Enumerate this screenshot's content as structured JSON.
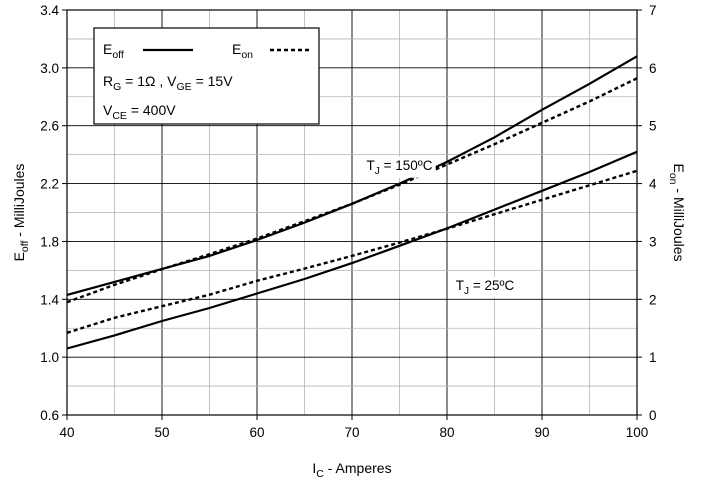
{
  "chart_data": {
    "type": "line",
    "x_axis": {
      "label_main": "I",
      "label_sub": "C",
      "label_rest": " - Amperes",
      "lim": [
        40,
        100
      ],
      "ticks": [
        40,
        50,
        60,
        70,
        80,
        90,
        100
      ],
      "minor_step": 5
    },
    "y_left": {
      "label_main": "E",
      "label_sub": "off",
      "label_rest": " - MilliJoules",
      "lim": [
        0.6,
        3.4
      ],
      "ticks": [
        0.6,
        1.0,
        1.4,
        1.8,
        2.2,
        2.6,
        3.0,
        3.4
      ],
      "tick_labels": [
        "0.6",
        "1.0",
        "1.4",
        "1.8",
        "2.2",
        "2.6",
        "3.0",
        "3.4"
      ],
      "minor_step": 0.2
    },
    "y_right": {
      "label_main": "E",
      "label_sub": "on",
      "label_rest": " - MilliJoules",
      "lim": [
        0,
        7
      ],
      "ticks": [
        0,
        1,
        2,
        3,
        4,
        5,
        6,
        7
      ],
      "tick_labels": [
        "0",
        "1",
        "2",
        "3",
        "4",
        "5",
        "6",
        "7"
      ]
    },
    "grid": true,
    "legend": {
      "placement": "top-left",
      "entries": [
        {
          "main": "E",
          "sub": "off",
          "style": "solid"
        },
        {
          "main": "E",
          "sub": "on",
          "style": "dashed"
        }
      ],
      "conditions": [
        [
          {
            "t": "R"
          },
          {
            "t": "G",
            "sub": true
          },
          {
            "t": " = 1Ω ,  V"
          },
          {
            "t": "GE",
            "sub": true
          },
          {
            "t": " = 15V"
          }
        ],
        [
          {
            "t": "V"
          },
          {
            "t": "CE",
            "sub": true
          },
          {
            "t": " = 400V"
          }
        ]
      ]
    },
    "annotations": [
      {
        "main": "T",
        "sub": "J",
        "rest": " = 150ºC",
        "x": 75,
        "y": 2.33
      },
      {
        "main": "T",
        "sub": "J",
        "rest": " = 25ºC",
        "x": 84,
        "y": 1.5
      }
    ],
    "series": [
      {
        "group": "150ºC",
        "quantity": "Eoff",
        "axis": "left",
        "style": "solid",
        "x": [
          40,
          45,
          50,
          55,
          60,
          65,
          70,
          75,
          80,
          85,
          90,
          95,
          100
        ],
        "y": [
          1.43,
          1.52,
          1.61,
          1.7,
          1.81,
          1.93,
          2.06,
          2.2,
          2.35,
          2.52,
          2.71,
          2.89,
          3.08
        ]
      },
      {
        "group": "150ºC",
        "quantity": "Eon",
        "axis": "right",
        "style": "dashed",
        "x": [
          40,
          45,
          50,
          55,
          60,
          65,
          70,
          75,
          80,
          85,
          90,
          95,
          100
        ],
        "y": [
          1.95,
          2.25,
          2.52,
          2.78,
          3.05,
          3.35,
          3.65,
          3.98,
          4.33,
          4.68,
          5.05,
          5.42,
          5.82
        ]
      },
      {
        "group": "25ºC",
        "quantity": "Eoff",
        "axis": "left",
        "style": "solid",
        "x": [
          40,
          45,
          50,
          55,
          60,
          65,
          70,
          75,
          80,
          85,
          90,
          95,
          100
        ],
        "y": [
          1.06,
          1.15,
          1.25,
          1.34,
          1.44,
          1.54,
          1.65,
          1.77,
          1.89,
          2.02,
          2.15,
          2.28,
          2.42
        ]
      },
      {
        "group": "25ºC",
        "quantity": "Eon",
        "axis": "right",
        "style": "dashed",
        "x": [
          40,
          45,
          50,
          55,
          60,
          65,
          70,
          75,
          80,
          85,
          90,
          95,
          100
        ],
        "y": [
          1.42,
          1.68,
          1.88,
          2.08,
          2.32,
          2.53,
          2.75,
          2.98,
          3.22,
          3.47,
          3.72,
          3.97,
          4.22
        ]
      }
    ]
  }
}
